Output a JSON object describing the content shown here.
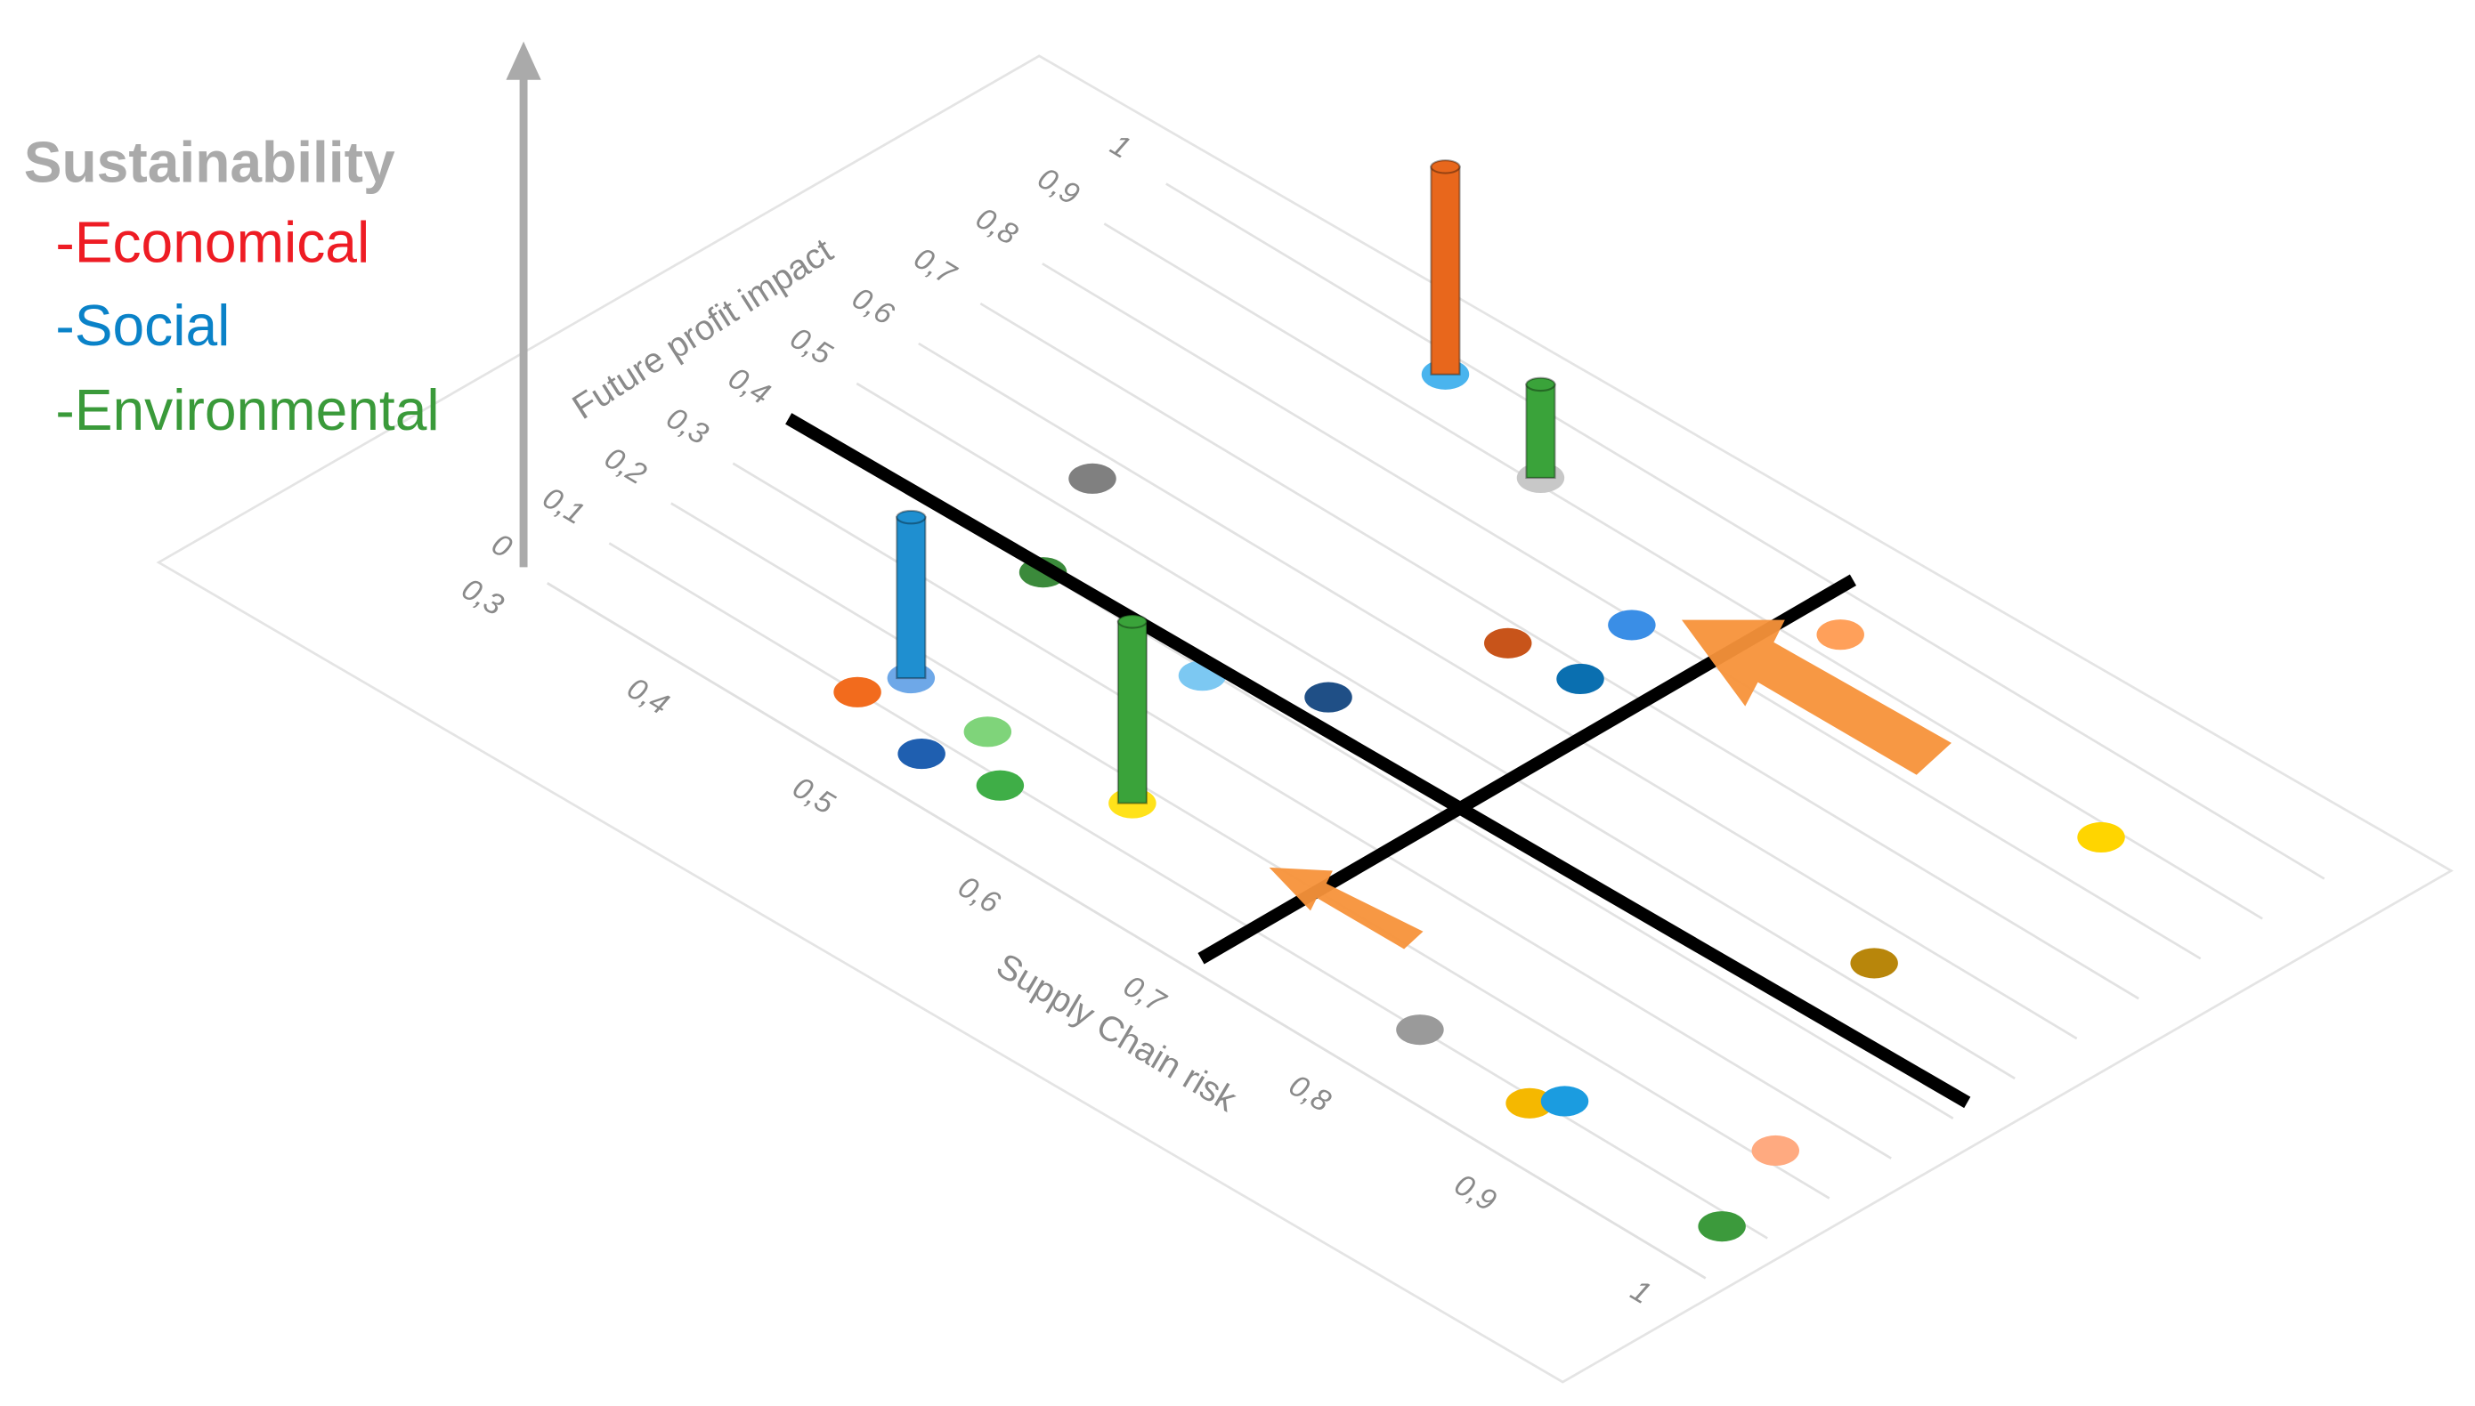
{
  "chart_data": {
    "type": "scatter3d",
    "legend_title": "Sustainability",
    "legend": [
      {
        "name": "-Economical",
        "color": "#ee1c24"
      },
      {
        "name": "-Social",
        "color": "#0a82c8"
      },
      {
        "name": "-Environmental",
        "color": "#3a9a3a"
      }
    ],
    "x_label": "Supply Chain risk",
    "y_label": "Future profit impact",
    "xlim": [
      0.3,
      1
    ],
    "xticks": [
      {
        "value": 0.3,
        "label": "0,3"
      },
      {
        "value": 0.4,
        "label": "0,4"
      },
      {
        "value": 0.5,
        "label": "0,5"
      },
      {
        "value": 0.6,
        "label": "0,6"
      },
      {
        "value": 0.7,
        "label": "0,7"
      },
      {
        "value": 0.8,
        "label": "0,8"
      },
      {
        "value": 0.9,
        "label": "0,9"
      },
      1
    ],
    "ylim": [
      0,
      1
    ],
    "yticks": [
      0,
      {
        "value": 0.1,
        "label": "0,1"
      },
      {
        "value": 0.2,
        "label": "0,2"
      },
      {
        "value": 0.3,
        "label": "0,3"
      },
      {
        "value": 0.4,
        "label": "0,4"
      },
      {
        "value": 0.5,
        "label": "0,5"
      },
      {
        "value": 0.6,
        "label": "0,6"
      },
      {
        "value": 0.7,
        "label": "0,7"
      },
      {
        "value": 0.8,
        "label": "0,8"
      },
      {
        "value": 0.9,
        "label": "0,9"
      },
      1
    ],
    "zlim": [
      0,
      1
    ],
    "grid": true,
    "points": [
      {
        "x": 0.45,
        "y": 0.1,
        "color": "#f26b1d"
      },
      {
        "x": 0.46,
        "y": 0.16,
        "color": "#6ea8e8"
      },
      {
        "x": 0.5,
        "y": 0.07,
        "color": "#1f5fb0"
      },
      {
        "x": 0.51,
        "y": 0.15,
        "color": "#7fd47a"
      },
      {
        "x": 0.54,
        "y": 0.09,
        "color": "#3fae47"
      },
      {
        "x": 0.59,
        "y": 0.17,
        "color": "#ffe21a"
      },
      {
        "x": 0.45,
        "y": 0.4,
        "color": "#3b8a3b"
      },
      {
        "x": 0.42,
        "y": 0.56,
        "color": "#808080"
      },
      {
        "x": 0.55,
        "y": 0.39,
        "color": "#7cc8f2"
      },
      {
        "x": 0.6,
        "y": 0.46,
        "color": "#1f4f86"
      },
      {
        "x": 0.48,
        "y": 0.97,
        "color": "#4ab4ee"
      },
      {
        "x": 0.56,
        "y": 0.91,
        "color": "#c8c8c8"
      },
      {
        "x": 0.63,
        "y": 0.67,
        "color": "#c8541a"
      },
      {
        "x": 0.66,
        "y": 0.79,
        "color": "#3a8ee6"
      },
      {
        "x": 0.67,
        "y": 0.68,
        "color": "#0a6fb0"
      },
      {
        "x": 0.73,
        "y": 0.94,
        "color": "#ffa05a"
      },
      {
        "x": 0.91,
        "y": 0.88,
        "color": "#ffd500"
      },
      {
        "x": 0.9,
        "y": 0.54,
        "color": "#b8860b"
      },
      {
        "x": 0.79,
        "y": 0.1,
        "color": "#9a9a9a"
      },
      {
        "x": 0.86,
        "y": 0.09,
        "color": "#f5b800"
      },
      {
        "x": 0.87,
        "y": 0.12,
        "color": "#1b9ce0"
      },
      {
        "x": 0.96,
        "y": 0.22,
        "color": "#ffaa80"
      },
      {
        "x": 0.98,
        "y": 0.08,
        "color": "#3c9a3c"
      }
    ],
    "bars": [
      {
        "x": 0.46,
        "y": 0.16,
        "z": 0.31,
        "color": "#1f8fd0"
      },
      {
        "x": 0.59,
        "y": 0.17,
        "z": 0.35,
        "color": "#3aa33a"
      },
      {
        "x": 0.48,
        "y": 0.97,
        "z": 0.4,
        "color": "#e8671c"
      },
      {
        "x": 0.56,
        "y": 0.91,
        "z": 0.18,
        "color": "#3aa33a"
      }
    ]
  }
}
